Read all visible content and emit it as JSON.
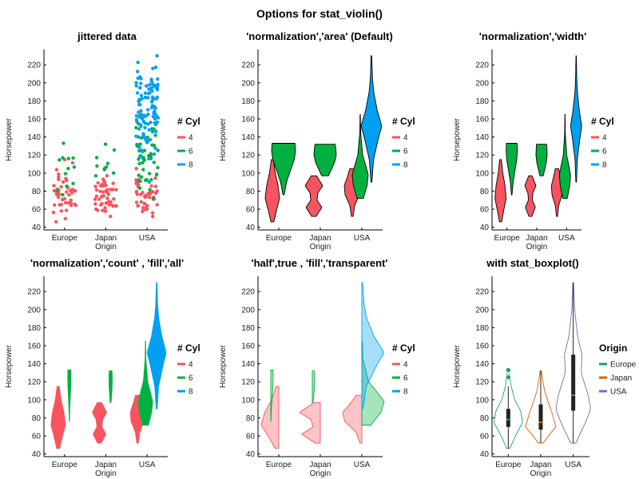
{
  "figure_title": "Options for stat_violin()",
  "colors": {
    "cyl_4": "#f8545f",
    "cyl_6": "#00b140",
    "cyl_8": "#00a0f0",
    "origin_europe": "#1b9e77",
    "origin_japan": "#d95f02",
    "origin_usa": "#7570b3"
  },
  "chart_data": [
    {
      "type": "scatter",
      "title": "jittered data",
      "xlabel": "Origin",
      "ylabel": "Horsepower",
      "categories": [
        "Europe",
        "Japan",
        "USA"
      ],
      "yticks": [
        40,
        60,
        80,
        100,
        120,
        140,
        160,
        180,
        200,
        220
      ],
      "ylim": [
        37,
        237
      ],
      "legend": {
        "title": "# Cyl",
        "entries": [
          "4",
          "6",
          "8"
        ],
        "placement": "right"
      },
      "series": [
        {
          "name": "4",
          "ranges": [
            [
              46,
              115
            ],
            [
              52,
              97
            ],
            [
              52,
              105
            ]
          ]
        },
        {
          "name": "6",
          "ranges": [
            [
              76,
              133
            ],
            [
              97,
              132
            ],
            [
              72,
              165
            ]
          ]
        },
        {
          "name": "8",
          "ranges": [
            null,
            null,
            [
              90,
              230
            ]
          ]
        }
      ]
    },
    {
      "type": "violin",
      "title": "'normalization','area' (Default)",
      "xlabel": "Origin",
      "ylabel": "Horsepower",
      "categories": [
        "Europe",
        "Japan",
        "USA"
      ],
      "yticks": [
        40,
        60,
        80,
        100,
        120,
        140,
        160,
        180,
        200,
        220
      ],
      "ylim": [
        37,
        237
      ],
      "legend": {
        "title": "# Cyl",
        "entries": [
          "4",
          "6",
          "8"
        ],
        "placement": "right"
      }
    },
    {
      "type": "violin",
      "title": "'normalization','width'",
      "xlabel": "Origin",
      "ylabel": "Horsepower",
      "categories": [
        "Europe",
        "Japan",
        "USA"
      ],
      "yticks": [
        40,
        60,
        80,
        100,
        120,
        140,
        160,
        180,
        200,
        220
      ],
      "ylim": [
        37,
        237
      ],
      "legend": {
        "title": "# Cyl",
        "entries": [
          "4",
          "6",
          "8"
        ],
        "placement": "right"
      }
    },
    {
      "type": "violin",
      "title": "'normalization','count' , 'fill','all'",
      "xlabel": "Origin",
      "ylabel": "Horsepower",
      "categories": [
        "Europe",
        "Japan",
        "USA"
      ],
      "yticks": [
        40,
        60,
        80,
        100,
        120,
        140,
        160,
        180,
        200,
        220
      ],
      "ylim": [
        37,
        237
      ],
      "legend": {
        "title": "# Cyl",
        "entries": [
          "4",
          "6",
          "8"
        ],
        "placement": "right"
      }
    },
    {
      "type": "violin",
      "title": "'half',true , 'fill','transparent'",
      "xlabel": "Origin",
      "ylabel": "Horsepower",
      "categories": [
        "Europe",
        "Japan",
        "USA"
      ],
      "yticks": [
        40,
        60,
        80,
        100,
        120,
        140,
        160,
        180,
        200,
        220
      ],
      "ylim": [
        37,
        237
      ],
      "legend": {
        "title": "# Cyl",
        "entries": [
          "4",
          "6",
          "8"
        ],
        "placement": "right"
      }
    },
    {
      "type": "violin",
      "title": "with stat_boxplot()",
      "xlabel": "Origin",
      "ylabel": "Horsepower",
      "categories": [
        "Europe",
        "Japan",
        "USA"
      ],
      "yticks": [
        40,
        60,
        80,
        100,
        120,
        140,
        160,
        180,
        200,
        220
      ],
      "ylim": [
        37,
        237
      ],
      "legend": {
        "title": "Origin",
        "entries": [
          "Europe",
          "Japan",
          "USA"
        ],
        "placement": "right"
      },
      "boxplot": [
        {
          "category": "Europe",
          "min": 46,
          "q1": 70,
          "median": 78,
          "q3": 90,
          "max": 115,
          "outliers": [
            125,
            133
          ]
        },
        {
          "category": "Japan",
          "min": 52,
          "q1": 67,
          "median": 75,
          "q3": 95,
          "max": 132,
          "outliers": []
        },
        {
          "category": "USA",
          "min": 52,
          "q1": 88,
          "median": 105,
          "q3": 150,
          "max": 230,
          "outliers": []
        }
      ]
    }
  ]
}
